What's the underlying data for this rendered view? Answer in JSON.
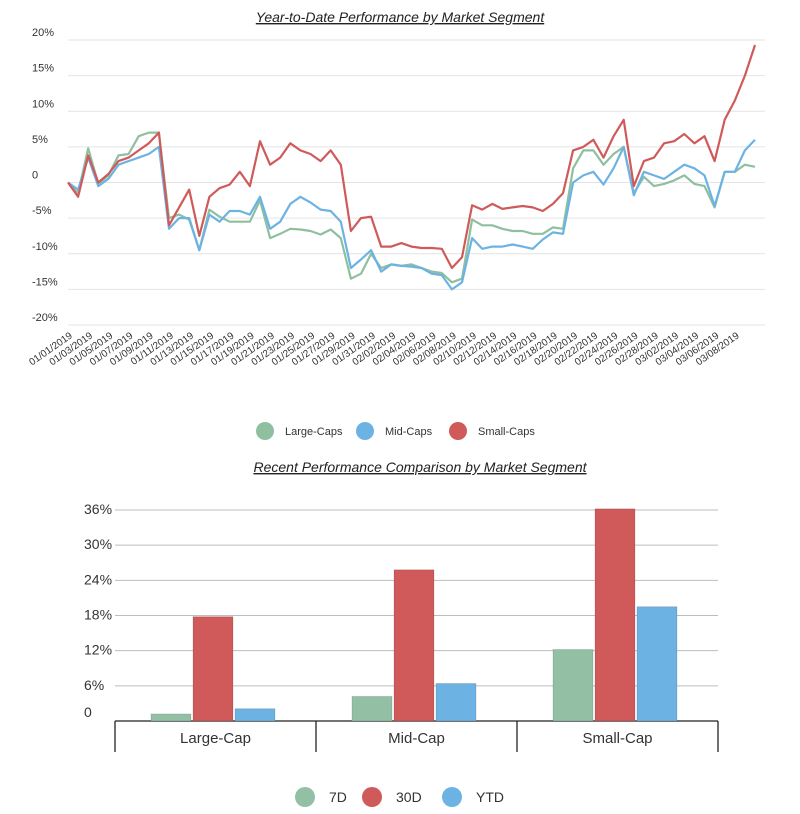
{
  "chart_data": [
    {
      "type": "line",
      "title": "Year-to-Date Performance by Market Segment",
      "xlabel": "",
      "ylabel": "",
      "ylim": [
        -20,
        20
      ],
      "yticks": [
        20,
        15,
        10,
        5,
        0,
        -5,
        -10,
        -15,
        -20
      ],
      "ytick_labels": [
        "20%",
        "15%",
        "10%",
        "5%",
        "0",
        "-5%",
        "-10%",
        "-15%",
        "-20%"
      ],
      "x_labels": [
        "01/01/2019",
        "01/03/2019",
        "01/05/2019",
        "01/07/2019",
        "01/09/2019",
        "01/11/2019",
        "01/13/2019",
        "01/15/2019",
        "01/17/2019",
        "01/19/2019",
        "01/21/2019",
        "01/23/2019",
        "01/25/2019",
        "01/27/2019",
        "01/29/2019",
        "01/31/2019",
        "02/02/2019",
        "02/04/2019",
        "02/06/2019",
        "02/08/2019",
        "02/10/2019",
        "02/12/2019",
        "02/14/2019",
        "02/16/2019",
        "02/18/2019",
        "02/20/2019",
        "02/22/2019",
        "02/24/2019",
        "02/26/2019",
        "02/28/2019",
        "03/02/2019",
        "03/04/2019",
        "03/06/2019",
        "03/08/2019"
      ],
      "legend_position": "bottom-center",
      "series": [
        {
          "name": "Large-Caps",
          "color": "#8fbf9f",
          "values": [
            0,
            -1.5,
            4.8,
            -0.2,
            1,
            3.8,
            4,
            6.5,
            7,
            7,
            -5,
            -4.5,
            -5.2,
            -9.5,
            -3.8,
            -4.8,
            -5.5,
            -5.5,
            -5.5,
            -2.5,
            -7.8,
            -7.2,
            -6.5,
            -6.6,
            -6.8,
            -7.3,
            -6.6,
            -7.8,
            -13.5,
            -12.8,
            -10,
            -12,
            -11.5,
            -11.7,
            -11.5,
            -12,
            -12.5,
            -12.7,
            -14,
            -13.5,
            -5.2,
            -6,
            -6,
            -6.5,
            -6.8,
            -6.8,
            -7.2,
            -7.2,
            -6.3,
            -6.5,
            2,
            4.5,
            4.5,
            2.5,
            4,
            5,
            -1.5,
            0.8,
            -0.5,
            -0.2,
            0.3,
            1,
            -0.2,
            -0.5,
            -3.5,
            1.5,
            1.5,
            2.5,
            2.2
          ]
        },
        {
          "name": "Mid-Caps",
          "color": "#6cb3e4",
          "values": [
            0,
            -1,
            3.5,
            -0.5,
            0.5,
            2.5,
            3,
            3.5,
            4,
            5,
            -6.5,
            -5,
            -5,
            -9.5,
            -4.5,
            -5.5,
            -4,
            -4,
            -4.5,
            -2,
            -6.5,
            -5.5,
            -3,
            -2,
            -2.8,
            -3.8,
            -4,
            -5.5,
            -12,
            -10.8,
            -9.5,
            -12.5,
            -11.5,
            -11.7,
            -11.8,
            -12,
            -12.8,
            -13,
            -15,
            -14,
            -7.8,
            -9.3,
            -9,
            -9,
            -8.7,
            -9,
            -9.3,
            -8,
            -7,
            -7.2,
            0,
            1,
            1.5,
            -0.3,
            2,
            5,
            -1.8,
            1.5,
            1,
            0.5,
            1.5,
            2.5,
            2,
            1,
            -3.3,
            1.5,
            1.5,
            4.5,
            6
          ]
        },
        {
          "name": "Small-Caps",
          "color": "#d05a5a",
          "values": [
            0,
            -2,
            3.8,
            0,
            1.2,
            3,
            3.5,
            4.5,
            5.5,
            7,
            -6,
            -3.5,
            -1,
            -7.5,
            -2,
            -0.8,
            -0.3,
            1.5,
            -0.5,
            5.8,
            2.5,
            3.5,
            5.5,
            4.5,
            4,
            3,
            4.5,
            2.5,
            -6.8,
            -5,
            -4.8,
            -9,
            -9,
            -8.5,
            -9,
            -9.2,
            -9.2,
            -9.3,
            -12,
            -10.5,
            -3.2,
            -3.8,
            -3,
            -3.7,
            -3.5,
            -3.3,
            -3.5,
            -4,
            -3,
            -1.5,
            4.5,
            5,
            6,
            3.5,
            6.5,
            8.8,
            -0.5,
            3,
            3.5,
            5.5,
            5.8,
            6.8,
            5.5,
            6.5,
            3,
            8.8,
            11.5,
            15,
            19.3
          ]
        }
      ]
    },
    {
      "type": "bar",
      "title": "Recent Performance Comparison by Market Segment",
      "xlabel": "",
      "ylabel": "",
      "ylim": [
        0,
        36
      ],
      "yticks": [
        0,
        6,
        12,
        18,
        24,
        30,
        36
      ],
      "ytick_labels": [
        "0",
        "6%",
        "12%",
        "18%",
        "24%",
        "30%",
        "36%"
      ],
      "categories": [
        "Large-Cap",
        "Mid-Cap",
        "Small-Cap"
      ],
      "legend_position": "bottom-center",
      "series": [
        {
          "name": "7D",
          "color": "#93c0a5",
          "values": [
            1.2,
            4.2,
            12.2
          ]
        },
        {
          "name": "30D",
          "color": "#d05a5a",
          "values": [
            17.8,
            25.8,
            36.2
          ]
        },
        {
          "name": "YTD",
          "color": "#6cb3e4",
          "values": [
            2.1,
            6.4,
            19.5
          ]
        }
      ]
    }
  ]
}
